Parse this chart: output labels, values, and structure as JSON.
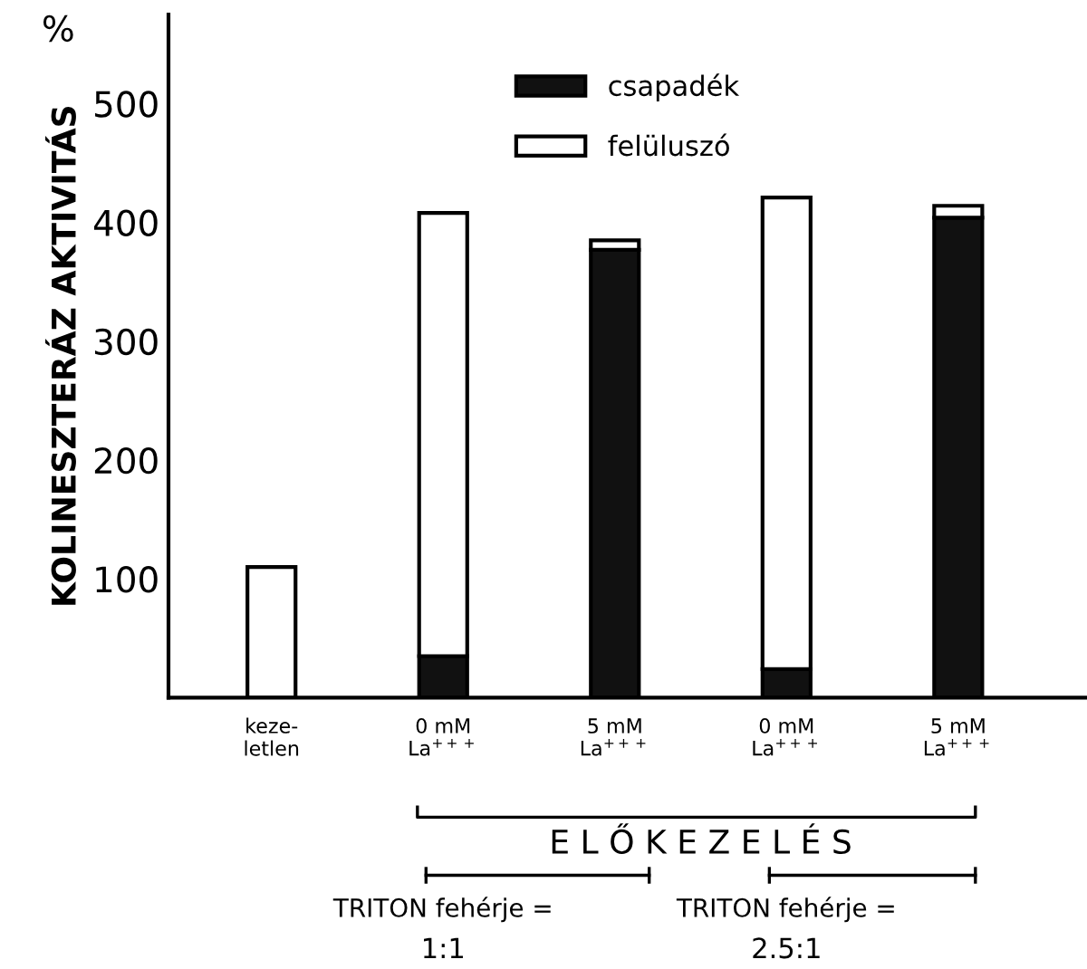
{
  "chart_data": {
    "type": "bar",
    "stacked": true,
    "ylabel": "KOLINESZTERÁZ AKTIVITÁS",
    "categories": [
      "keze-\nletlen",
      "0 mM\nLa$^{+++}$",
      "5 mM\nLa$^{+++}$",
      "0 mM\nLa$^{+++}$",
      "5 mM\nLa$^{+++}$"
    ],
    "series": [
      {
        "name": "csapadék",
        "color": "#111111",
        "values": [
          null,
          35,
          377,
          24,
          404
        ]
      },
      {
        "name": "felüluszó",
        "color": "#ffffff",
        "values": [
          110,
          373,
          8,
          397,
          10
        ]
      }
    ],
    "ylim": [
      0,
      575
    ],
    "yticks": [
      100,
      200,
      300,
      400,
      500
    ],
    "legend": "top",
    "grid": false,
    "annotations": [
      "%",
      "E L Ő K E Z E L É S",
      "TRITON fehérje =",
      "1:1",
      "TRITON fehérje =",
      "2.5:1"
    ]
  }
}
